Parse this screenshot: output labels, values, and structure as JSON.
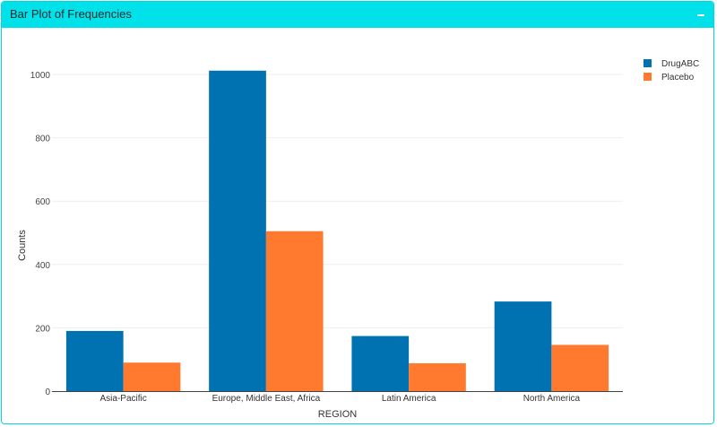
{
  "panel": {
    "title": "Bar Plot of Frequencies",
    "collapse_label": "−"
  },
  "colors": {
    "header": "#00e1ea",
    "border": "#00d6e6",
    "drugabc": "#0072b2",
    "placebo": "#ff7a2f"
  },
  "chart_data": {
    "type": "bar",
    "title": "",
    "xlabel": "REGION",
    "ylabel": "Counts",
    "categories": [
      "Asia-Pacific",
      "Europe, Middle East, Africa",
      "Latin America",
      "North America"
    ],
    "series": [
      {
        "name": "DrugABC",
        "values": [
          190,
          1012,
          174,
          283
        ]
      },
      {
        "name": "Placebo",
        "values": [
          90,
          505,
          88,
          146
        ]
      }
    ],
    "ylim": [
      0,
      1100
    ],
    "yticks": [
      0,
      200,
      400,
      600,
      800,
      1000
    ],
    "grid": true,
    "legend": "top-right"
  }
}
